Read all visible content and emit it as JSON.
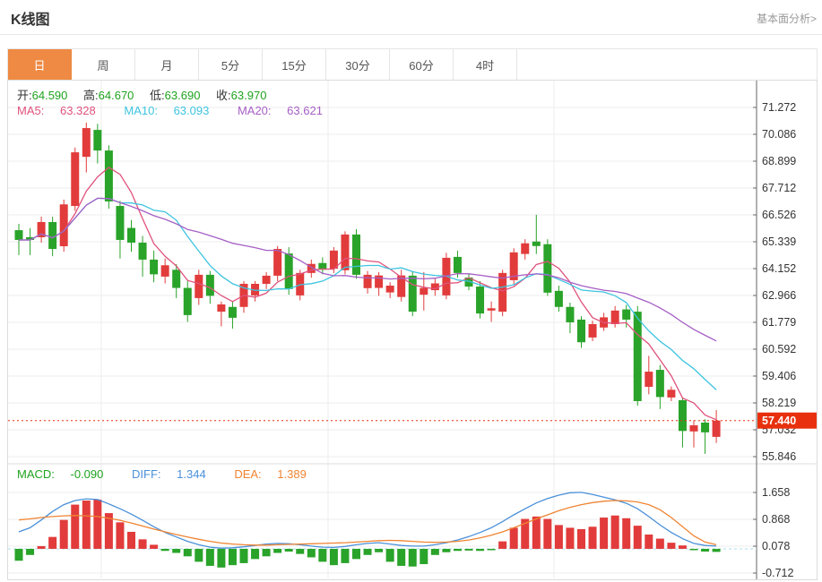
{
  "header": {
    "title": "K线图",
    "link": "基本面分析>"
  },
  "tabs": {
    "items": [
      "日",
      "周",
      "月",
      "5分",
      "15分",
      "30分",
      "60分",
      "4时"
    ],
    "selected": "日"
  },
  "ohlc_row": {
    "open_label": "开:",
    "open": "64.590",
    "high_label": "高:",
    "high": "64.670",
    "low_label": "低:",
    "low": "63.690",
    "close_label": "收:",
    "close": "63.970"
  },
  "ma_row": {
    "ma5_label": "MA5:",
    "ma5": "63.328",
    "ma10_label": "MA10:",
    "ma10": "63.093",
    "ma20_label": "MA20:",
    "ma20": "63.621"
  },
  "macd_row": {
    "macd_label": "MACD:",
    "macd": "-0.090",
    "diff_label": "DIFF:",
    "diff": "1.344",
    "dea_label": "DEA:",
    "dea": "1.389"
  },
  "current_price_badge": "57.440",
  "colors": {
    "accent_orange": "#ee8a43",
    "up_red": "#e23b3b",
    "down_green": "#29a329",
    "value_green": "#1fa31f",
    "ma5_pink": "#e0527c",
    "ma10_cyan": "#3ec4e0",
    "ma20_purple": "#a55fc5",
    "diff_blue": "#4a90d9",
    "dea_orange": "#ef8432",
    "badge_red": "#e8300e",
    "zero_line_blue": "#aedcec",
    "grid_gray": "#ededed",
    "axis_gray": "#666666"
  },
  "chart_data": {
    "type": "candlestick+macd",
    "title": "K线图 daily candlestick with MA5/MA10/MA20 overlays and MACD sub-chart",
    "legend": [
      "MA5",
      "MA10",
      "MA20",
      "DIFF",
      "DEA",
      "MACD"
    ],
    "price_axis_ticks": [
      "71.272",
      "70.086",
      "68.899",
      "67.712",
      "66.526",
      "65.339",
      "64.152",
      "62.966",
      "61.779",
      "60.592",
      "59.406",
      "58.219",
      "57.032",
      "55.846"
    ],
    "price_axis_range": [
      55.846,
      71.272
    ],
    "macd_axis_ticks": [
      "1.658",
      "0.868",
      "0.078",
      "-0.712"
    ],
    "macd_axis_range": [
      -0.712,
      1.658
    ],
    "current_price": 57.44,
    "grid": true,
    "candles_ohlc": [
      [
        65.85,
        66.13,
        64.75,
        65.42
      ],
      [
        65.54,
        65.94,
        64.75,
        65.42
      ],
      [
        65.54,
        66.45,
        65.3,
        66.21
      ],
      [
        66.21,
        66.45,
        64.7,
        65.02
      ],
      [
        65.14,
        67.2,
        64.9,
        66.99
      ],
      [
        66.92,
        69.5,
        66.7,
        69.29
      ],
      [
        69.09,
        70.6,
        68.4,
        70.36
      ],
      [
        70.28,
        70.55,
        68.8,
        69.37
      ],
      [
        69.37,
        69.6,
        66.8,
        67.12
      ],
      [
        66.92,
        67.15,
        64.6,
        65.42
      ],
      [
        65.95,
        66.3,
        64.9,
        65.3
      ],
      [
        65.3,
        65.6,
        63.8,
        64.55
      ],
      [
        64.55,
        64.95,
        63.55,
        63.9
      ],
      [
        63.8,
        64.6,
        63.5,
        64.3
      ],
      [
        64.1,
        64.35,
        62.85,
        63.3
      ],
      [
        63.3,
        63.6,
        61.8,
        62.1
      ],
      [
        62.85,
        64.1,
        62.55,
        63.88
      ],
      [
        63.88,
        64.05,
        62.6,
        62.95
      ],
      [
        62.25,
        62.7,
        61.6,
        62.57
      ],
      [
        62.46,
        62.7,
        61.5,
        61.98
      ],
      [
        62.46,
        63.6,
        62.2,
        63.48
      ],
      [
        62.97,
        63.6,
        62.7,
        63.48
      ],
      [
        63.48,
        64.0,
        63.25,
        63.84
      ],
      [
        63.84,
        65.15,
        63.6,
        65.02
      ],
      [
        64.82,
        65.1,
        63.0,
        63.25
      ],
      [
        62.97,
        64.1,
        62.75,
        63.96
      ],
      [
        63.96,
        64.55,
        63.75,
        64.36
      ],
      [
        64.4,
        64.65,
        63.9,
        64.1
      ],
      [
        64.15,
        65.1,
        63.95,
        64.95
      ],
      [
        64.08,
        65.8,
        63.9,
        65.66
      ],
      [
        65.66,
        65.9,
        63.7,
        63.88
      ],
      [
        63.29,
        64.05,
        63.05,
        63.88
      ],
      [
        63.3,
        64.0,
        62.95,
        63.85
      ],
      [
        63.1,
        63.55,
        62.85,
        63.4
      ],
      [
        62.9,
        64.1,
        62.7,
        63.85
      ],
      [
        63.84,
        64.05,
        62.05,
        62.25
      ],
      [
        63.0,
        64.0,
        62.3,
        63.3
      ],
      [
        63.2,
        63.7,
        62.95,
        63.5
      ],
      [
        62.97,
        64.85,
        62.8,
        64.63
      ],
      [
        64.67,
        64.95,
        63.75,
        63.96
      ],
      [
        63.76,
        63.95,
        63.2,
        63.36
      ],
      [
        63.36,
        63.6,
        61.95,
        62.17
      ],
      [
        62.3,
        62.7,
        61.8,
        62.4
      ],
      [
        62.25,
        64.1,
        62.05,
        63.96
      ],
      [
        63.64,
        65.05,
        63.45,
        64.87
      ],
      [
        64.8,
        65.45,
        64.55,
        65.27
      ],
      [
        65.35,
        66.53,
        64.8,
        65.15
      ],
      [
        65.23,
        65.45,
        62.95,
        63.09
      ],
      [
        63.17,
        63.4,
        62.25,
        62.46
      ],
      [
        62.46,
        62.65,
        61.3,
        61.78
      ],
      [
        61.9,
        62.05,
        60.65,
        60.9
      ],
      [
        61.11,
        61.85,
        60.95,
        61.7
      ],
      [
        61.55,
        62.2,
        61.4,
        62.0
      ],
      [
        61.7,
        62.5,
        61.55,
        62.3
      ],
      [
        62.35,
        62.55,
        61.55,
        61.9
      ],
      [
        62.25,
        62.5,
        58.1,
        58.3
      ],
      [
        58.93,
        60.3,
        58.6,
        59.6
      ],
      [
        59.68,
        59.9,
        57.95,
        58.48
      ],
      [
        58.46,
        58.95,
        58.3,
        58.8
      ],
      [
        58.34,
        58.45,
        56.25,
        56.98
      ],
      [
        56.96,
        57.45,
        56.25,
        57.23
      ],
      [
        57.35,
        57.5,
        55.97,
        56.92
      ],
      [
        56.72,
        57.9,
        56.45,
        57.44
      ]
    ],
    "ma_windows": [
      5,
      10,
      20
    ],
    "macd": {
      "histogram": [
        -0.35,
        -0.18,
        0.08,
        0.35,
        0.85,
        1.3,
        1.42,
        1.45,
        1.05,
        0.78,
        0.5,
        0.28,
        0.12,
        -0.06,
        -0.12,
        -0.22,
        -0.38,
        -0.5,
        -0.55,
        -0.48,
        -0.42,
        -0.3,
        -0.22,
        -0.12,
        -0.08,
        -0.15,
        -0.25,
        -0.38,
        -0.48,
        -0.42,
        -0.3,
        -0.18,
        -0.1,
        -0.38,
        -0.5,
        -0.52,
        -0.45,
        -0.18,
        -0.1,
        -0.06,
        -0.05,
        -0.06,
        -0.04,
        0.22,
        0.62,
        0.88,
        0.95,
        0.88,
        0.7,
        0.62,
        0.58,
        0.65,
        0.92,
        0.98,
        0.9,
        0.68,
        0.42,
        0.3,
        0.18,
        0.1,
        -0.04,
        -0.08,
        -0.09
      ],
      "diff": [
        0.5,
        0.62,
        0.85,
        1.1,
        1.3,
        1.42,
        1.47,
        1.45,
        1.32,
        1.18,
        1.02,
        0.84,
        0.65,
        0.48,
        0.35,
        0.22,
        0.12,
        0.05,
        0.02,
        0.03,
        0.06,
        0.1,
        0.14,
        0.16,
        0.15,
        0.12,
        0.08,
        0.05,
        0.04,
        0.07,
        0.12,
        0.16,
        0.18,
        0.14,
        0.1,
        0.08,
        0.08,
        0.12,
        0.18,
        0.26,
        0.36,
        0.48,
        0.62,
        0.8,
        1.0,
        1.18,
        1.35,
        1.48,
        1.58,
        1.65,
        1.66,
        1.6,
        1.52,
        1.44,
        1.34,
        1.18,
        0.95,
        0.7,
        0.48,
        0.3,
        0.16,
        0.1,
        0.08
      ],
      "dea": [
        0.85,
        0.88,
        0.92,
        0.95,
        0.97,
        0.98,
        0.97,
        0.95,
        0.9,
        0.84,
        0.76,
        0.67,
        0.58,
        0.5,
        0.42,
        0.35,
        0.28,
        0.22,
        0.17,
        0.14,
        0.12,
        0.11,
        0.11,
        0.12,
        0.13,
        0.14,
        0.15,
        0.16,
        0.17,
        0.18,
        0.2,
        0.22,
        0.24,
        0.25,
        0.24,
        0.22,
        0.2,
        0.19,
        0.2,
        0.22,
        0.26,
        0.32,
        0.4,
        0.5,
        0.62,
        0.75,
        0.88,
        1.0,
        1.12,
        1.22,
        1.3,
        1.36,
        1.4,
        1.42,
        1.41,
        1.38,
        1.3,
        1.15,
        0.92,
        0.65,
        0.38,
        0.2,
        0.12
      ]
    }
  }
}
